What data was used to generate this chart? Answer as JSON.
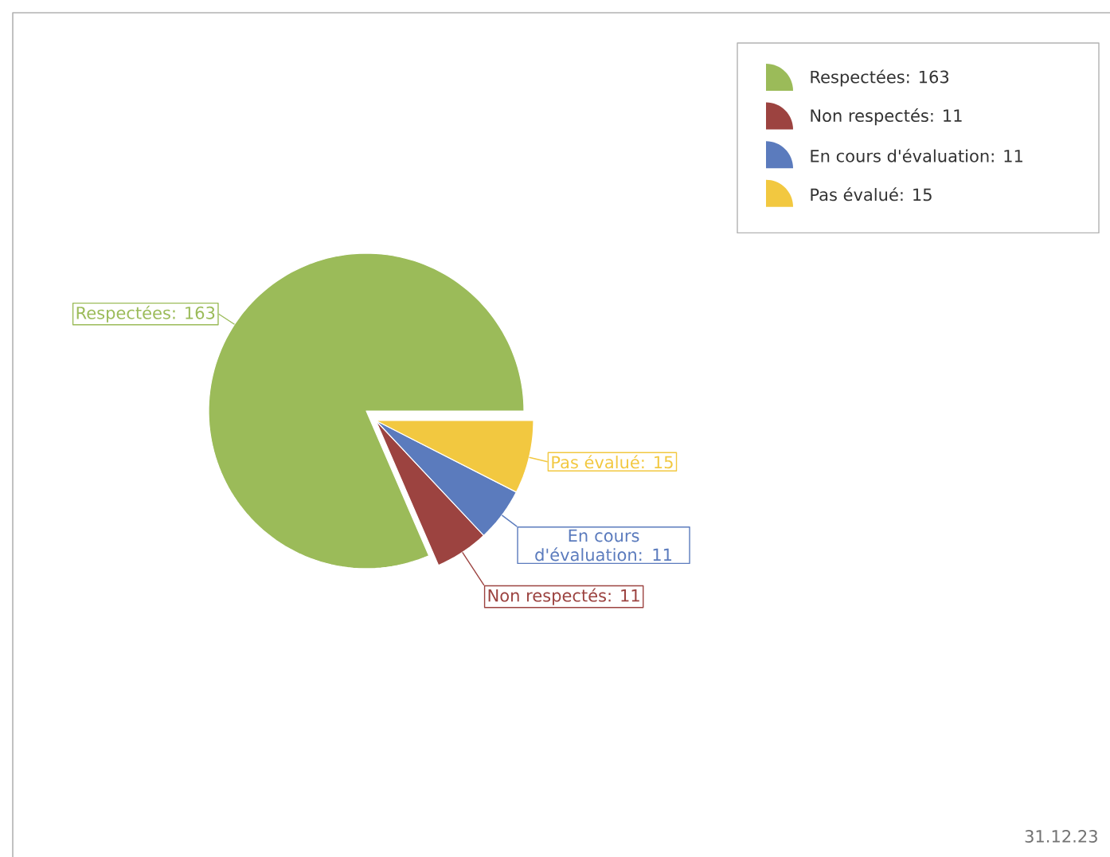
{
  "chart_data": {
    "type": "pie",
    "categories": [
      "Respectées: 163",
      "Non respectés: 11",
      "En cours d'évaluation: 11",
      "Pas évalué: 15"
    ],
    "values": [
      163,
      11,
      11,
      15
    ],
    "colors": [
      "#9bbb59",
      "#9c4340",
      "#5b7bbd",
      "#f2c840"
    ],
    "legend": "top right",
    "annotations": [
      "31.12.23"
    ]
  }
}
